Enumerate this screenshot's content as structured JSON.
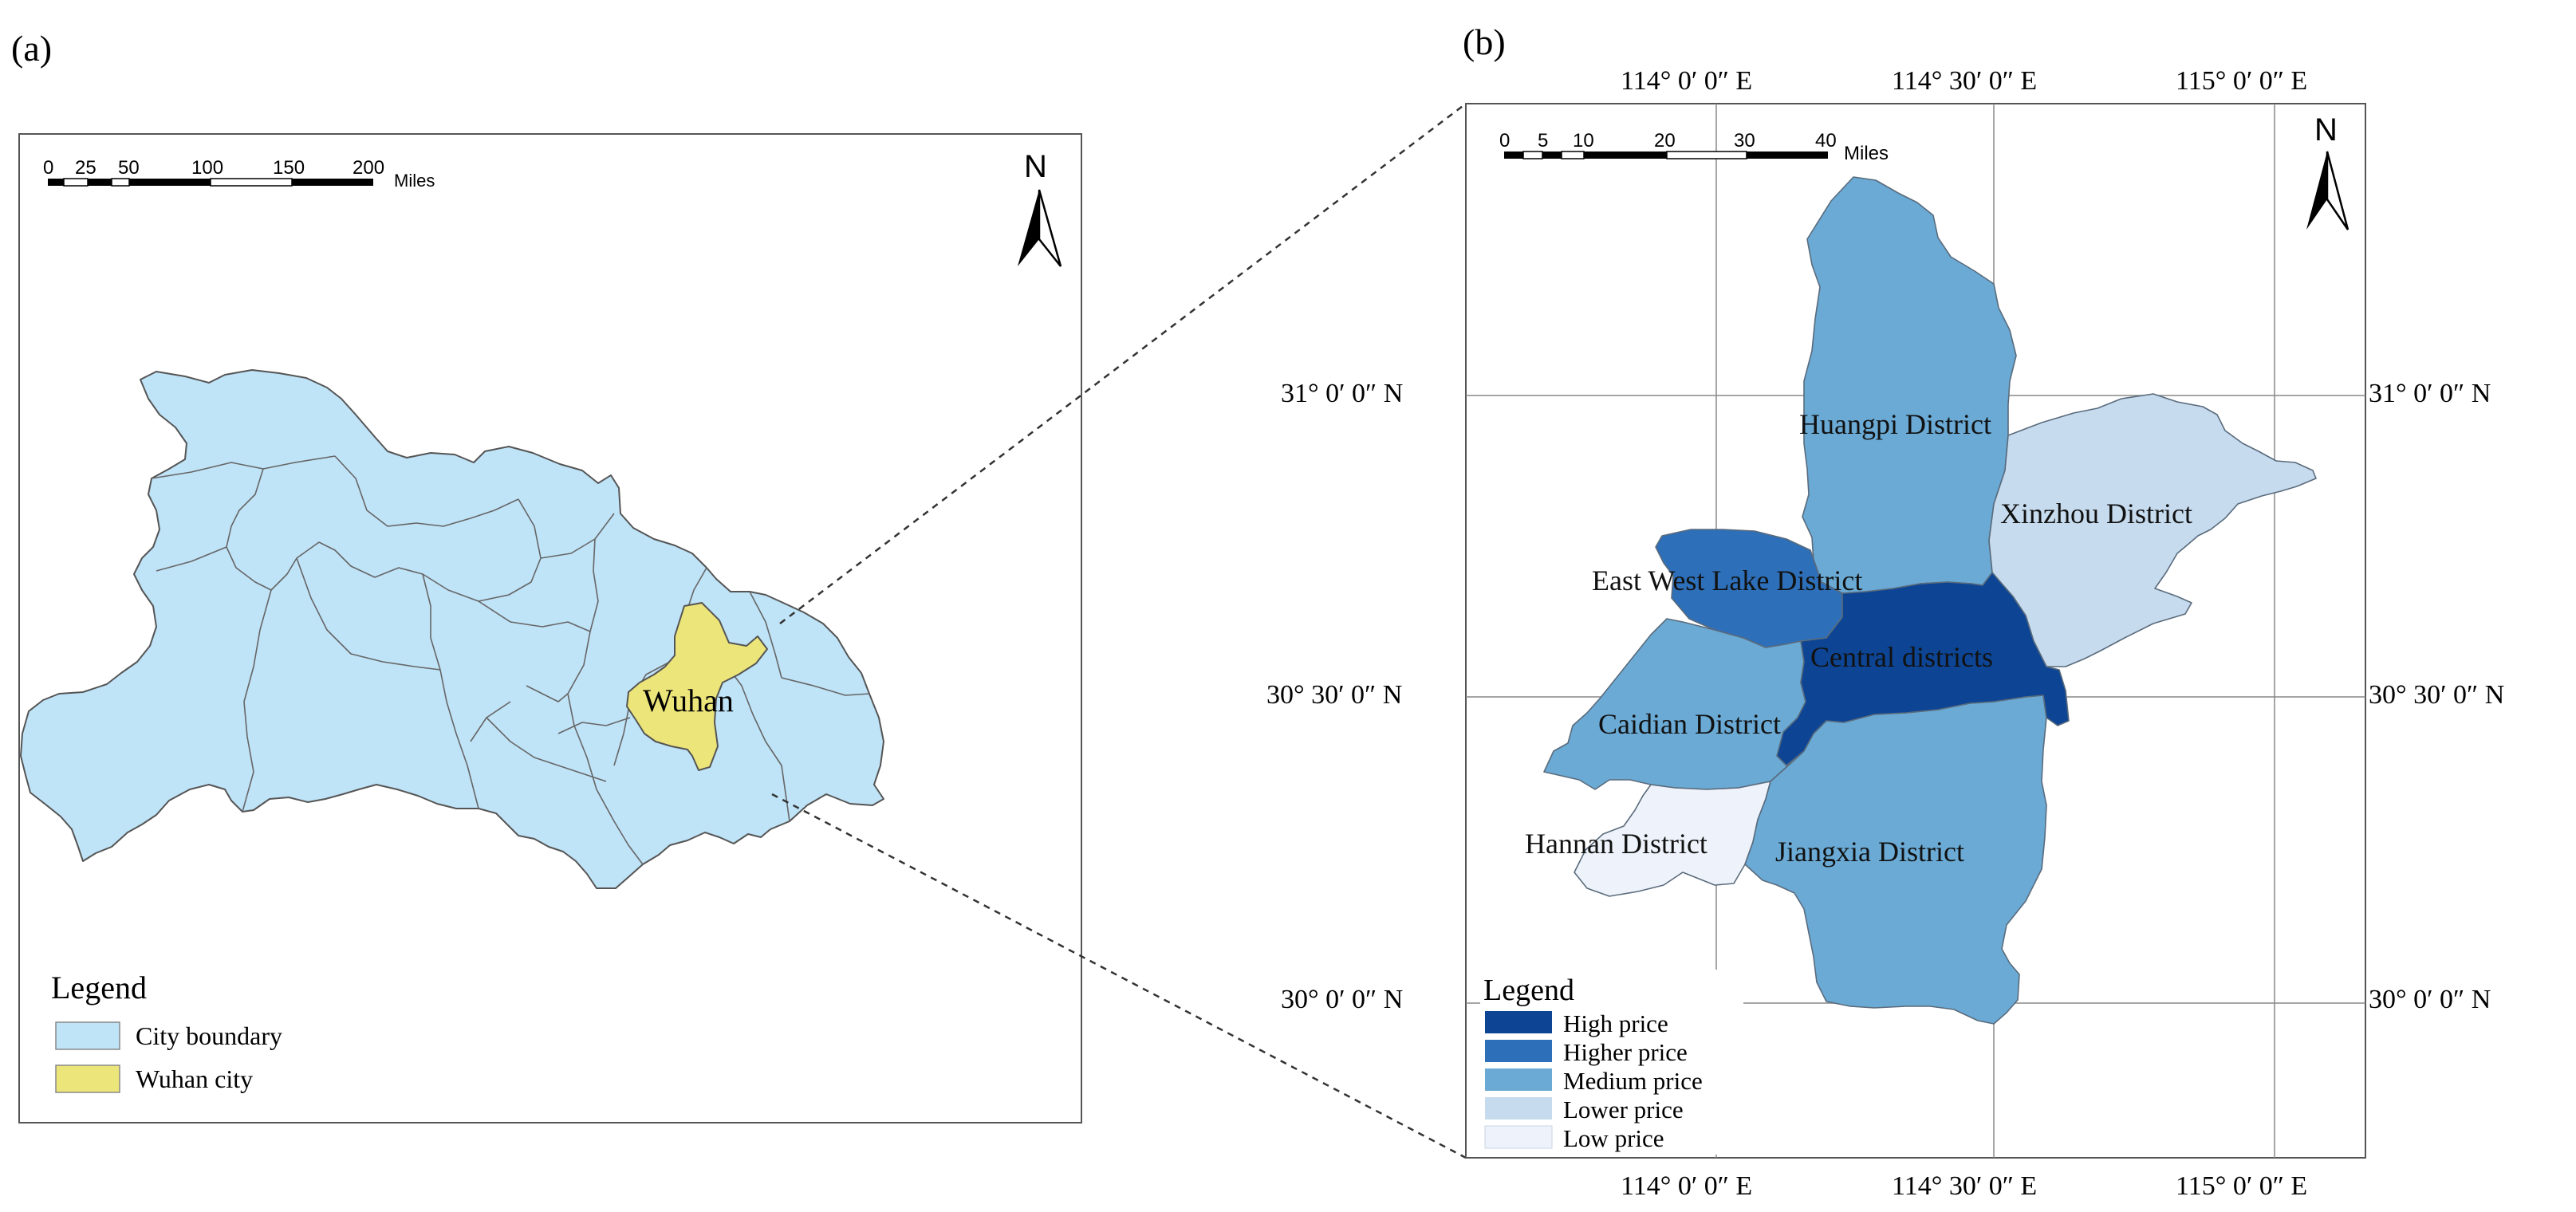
{
  "panels": {
    "a": {
      "label": "(a)"
    },
    "b": {
      "label": "(b)"
    }
  },
  "map_a": {
    "scale": {
      "ticks": [
        "0",
        "25",
        "50",
        "100",
        "150",
        "200"
      ],
      "unit": "Miles"
    },
    "north": "N",
    "city_label": "Wuhan",
    "legend": {
      "title": "Legend",
      "items": [
        {
          "label": "City boundary",
          "color": "#bfe3f7"
        },
        {
          "label": "Wuhan city",
          "color": "#ece57a"
        }
      ]
    }
  },
  "map_b": {
    "scale": {
      "ticks": [
        "0",
        "5",
        "10",
        "20",
        "30",
        "40"
      ],
      "unit": "Miles"
    },
    "north": "N",
    "lon_labels": [
      "114° 0′ 0″ E",
      "114° 30′ 0″ E",
      "115° 0′ 0″ E"
    ],
    "lat_labels": [
      "31° 0′ 0″ N",
      "30° 30′ 0″ N",
      "30° 0′ 0″ N"
    ],
    "districts": [
      {
        "label": "Huangpi District",
        "class": "Medium price"
      },
      {
        "label": "Xinzhou District",
        "class": "Lower price"
      },
      {
        "label": "East West Lake District",
        "class": "Higher price"
      },
      {
        "label": "Central districts",
        "class": "High price"
      },
      {
        "label": "Caidian District",
        "class": "Medium price"
      },
      {
        "label": "Hannan District",
        "class": "Low price"
      },
      {
        "label": "Jiangxia District",
        "class": "Medium price"
      }
    ],
    "legend": {
      "title": "Legend",
      "items": [
        {
          "label": "High price",
          "color": "#0d4594"
        },
        {
          "label": "Higher price",
          "color": "#2d6fb8"
        },
        {
          "label": "Medium price",
          "color": "#6aaad5"
        },
        {
          "label": "Lower price",
          "color": "#c6dbee"
        },
        {
          "label": "Low price",
          "color": "#eef3fb"
        }
      ]
    }
  }
}
